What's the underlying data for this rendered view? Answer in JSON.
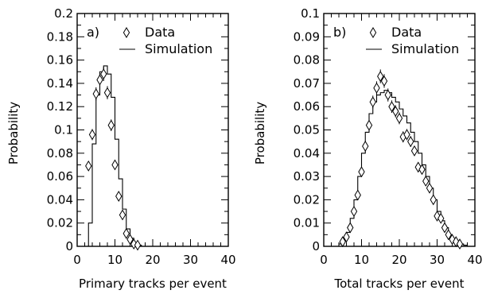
{
  "chart_data": [
    {
      "type": "scatter",
      "panel_label": "a)",
      "xlabel": "Primary tracks per event",
      "ylabel": "Probability",
      "xlim": [
        0,
        40
      ],
      "ylim": [
        0,
        0.2
      ],
      "xticks": [
        "0",
        "10",
        "20",
        "30",
        "40"
      ],
      "yticks": [
        "0",
        "0.02",
        "0.04",
        "0.06",
        "0.08",
        "0.1",
        "0.12",
        "0.14",
        "0.16",
        "0.18",
        "0.2"
      ],
      "legend": {
        "placement": "top-right",
        "entries": [
          "Data",
          "Simulation"
        ]
      },
      "series": [
        {
          "name": "Data",
          "marker": "diamond",
          "x": [
            3,
            4,
            5,
            6,
            7,
            8,
            9,
            10,
            11,
            12,
            13,
            14,
            15,
            16
          ],
          "y": [
            0.069,
            0.096,
            0.131,
            0.143,
            0.148,
            0.132,
            0.104,
            0.07,
            0.043,
            0.027,
            0.011,
            0.006,
            0.002,
            0.001
          ]
        },
        {
          "name": "Simulation",
          "style": "step",
          "edges": [
            3,
            4,
            5,
            6,
            7,
            8,
            9,
            10,
            11,
            12,
            13,
            14,
            15,
            16,
            17
          ],
          "values": [
            0.02,
            0.088,
            0.13,
            0.15,
            0.155,
            0.148,
            0.128,
            0.092,
            0.058,
            0.032,
            0.015,
            0.007,
            0.003,
            0.001
          ]
        }
      ]
    },
    {
      "type": "scatter",
      "panel_label": "b)",
      "xlabel": "Total tracks per event",
      "ylabel": "Probability",
      "xlim": [
        0,
        40
      ],
      "ylim": [
        0,
        0.1
      ],
      "xticks": [
        "0",
        "10",
        "20",
        "30",
        "40"
      ],
      "yticks": [
        "0",
        "0.01",
        "0.02",
        "0.03",
        "0.04",
        "0.05",
        "0.06",
        "0.07",
        "0.08",
        "0.09",
        "0.1"
      ],
      "legend": {
        "placement": "top-right",
        "entries": [
          "Data",
          "Simulation"
        ]
      },
      "series": [
        {
          "name": "Data",
          "marker": "diamond",
          "x": [
            5,
            6,
            7,
            8,
            9,
            10,
            11,
            12,
            13,
            14,
            15,
            16,
            17,
            18,
            19,
            20,
            21,
            22,
            23,
            24,
            25,
            26,
            27,
            28,
            29,
            30,
            31,
            32,
            33,
            34,
            35,
            36
          ],
          "y": [
            0.002,
            0.004,
            0.008,
            0.015,
            0.022,
            0.032,
            0.043,
            0.052,
            0.062,
            0.068,
            0.073,
            0.071,
            0.065,
            0.06,
            0.058,
            0.055,
            0.047,
            0.048,
            0.045,
            0.041,
            0.034,
            0.033,
            0.028,
            0.025,
            0.02,
            0.013,
            0.012,
            0.008,
            0.005,
            0.003,
            0.002,
            0.001
          ]
        },
        {
          "name": "Simulation",
          "style": "step",
          "edges": [
            4,
            5,
            6,
            7,
            8,
            9,
            10,
            11,
            12,
            13,
            14,
            15,
            16,
            17,
            18,
            19,
            20,
            21,
            22,
            23,
            24,
            25,
            26,
            27,
            28,
            29,
            30,
            31,
            32,
            33,
            34,
            35,
            36,
            37,
            38
          ],
          "values": [
            0.001,
            0.003,
            0.006,
            0.012,
            0.02,
            0.03,
            0.04,
            0.049,
            0.057,
            0.062,
            0.065,
            0.066,
            0.067,
            0.066,
            0.064,
            0.062,
            0.059,
            0.056,
            0.053,
            0.049,
            0.045,
            0.04,
            0.035,
            0.03,
            0.025,
            0.02,
            0.015,
            0.011,
            0.008,
            0.005,
            0.003,
            0.002,
            0.001,
            0.0005
          ]
        }
      ]
    }
  ]
}
